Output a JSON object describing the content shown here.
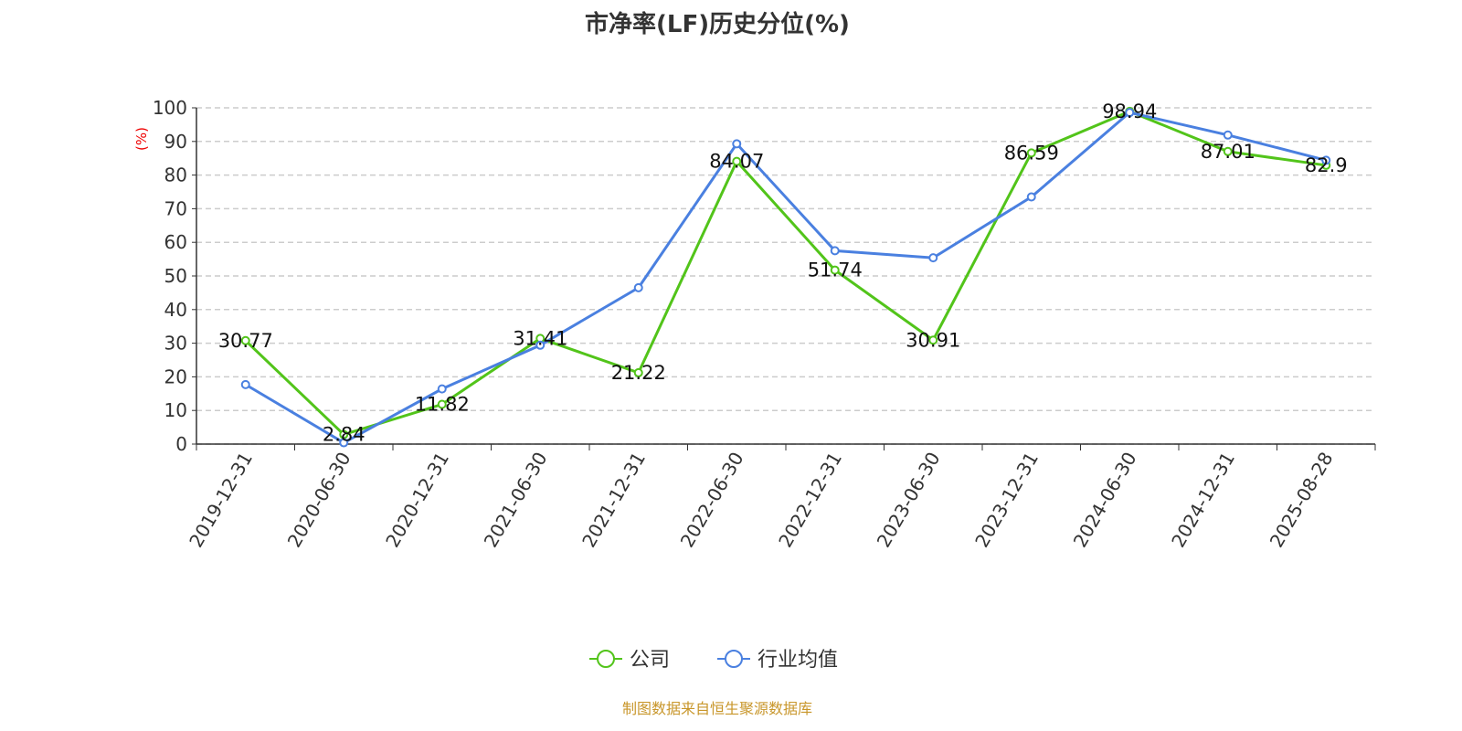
{
  "title": "市净率(LF)历史分位(%)",
  "footer": "制图数据来自恒生聚源数据库",
  "chart_data": {
    "type": "line",
    "title": "市净率(LF)历史分位(%)",
    "ylabel": "(%)",
    "ylim": [
      0,
      100
    ],
    "yticks": [
      0,
      10,
      20,
      30,
      40,
      50,
      60,
      70,
      80,
      90,
      100
    ],
    "grid": true,
    "legend_position": "bottom",
    "categories": [
      "2019-12-31",
      "2020-06-30",
      "2020-12-31",
      "2021-06-30",
      "2021-12-31",
      "2022-06-30",
      "2022-12-31",
      "2023-06-30",
      "2023-12-31",
      "2024-06-30",
      "2024-12-31",
      "2025-08-28"
    ],
    "series": [
      {
        "name": "公司",
        "color": "#52c41a",
        "labels": true,
        "values": [
          30.77,
          2.84,
          11.82,
          31.41,
          21.22,
          84.07,
          51.74,
          30.91,
          86.59,
          98.94,
          87.01,
          82.9
        ]
      },
      {
        "name": "行业均值",
        "color": "#4a80e0",
        "labels": false,
        "values": [
          17.7,
          0.4,
          16.4,
          29.4,
          46.5,
          89.3,
          57.5,
          55.4,
          73.5,
          98.6,
          91.9,
          84.4
        ]
      }
    ]
  }
}
